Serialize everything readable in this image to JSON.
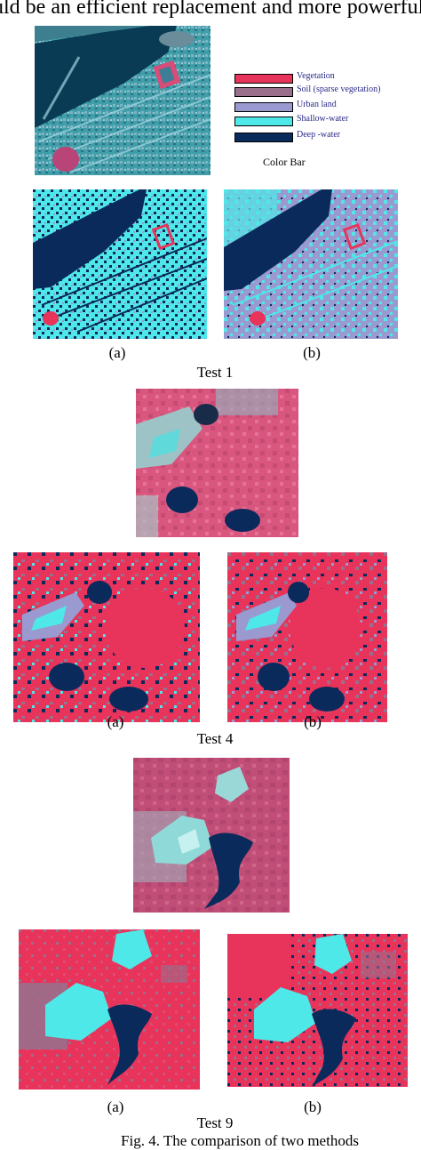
{
  "header_text": "uld be an efficient replacement and more powerful.",
  "legend": {
    "title": "Color Bar",
    "items": [
      {
        "label": "Vegetation",
        "color": "#e8335b"
      },
      {
        "label": "Soil (sparse vegetation)",
        "color": "#9a6f8c"
      },
      {
        "label": "Urban land",
        "color": "#9a9ad0"
      },
      {
        "label": "Shallow-water",
        "color": "#4fe8e8"
      },
      {
        "label": "Deep -water",
        "color": "#0b2a5c"
      }
    ]
  },
  "tests": [
    {
      "label": "Test 1",
      "caption_a": "(a)",
      "caption_b": "(b)"
    },
    {
      "label": "Test 4",
      "caption_a": "(a)",
      "caption_b": "(b)"
    },
    {
      "label": "Test 9",
      "caption_a": "(a)",
      "caption_b": "(b)"
    }
  ],
  "figure_caption": "Fig. 4. The comparison of two methods"
}
